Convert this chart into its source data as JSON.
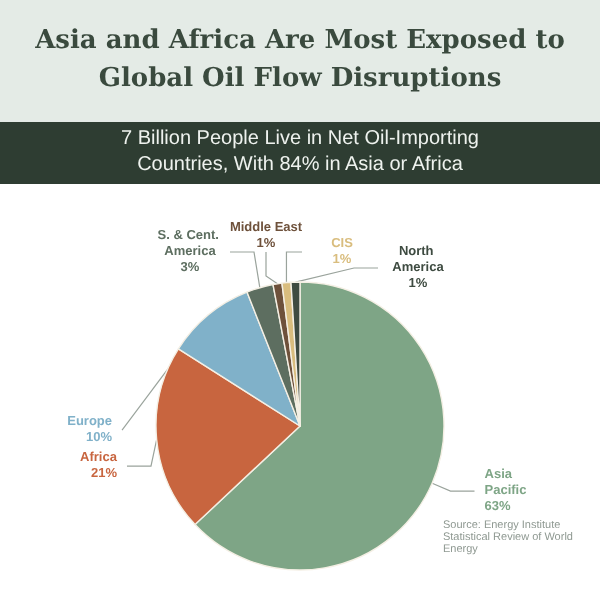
{
  "chart_data": {
    "type": "pie",
    "title": "Asia and Africa Are Most Exposed to Global Oil Flow Disruptions",
    "subtitle": "7 Billion People Live in Net Oil-Importing Countries, With 84% in Asia or Africa",
    "categories": [
      "Asia Pacific",
      "Africa",
      "Europe",
      "S. & Cent. America",
      "Middle East",
      "CIS",
      "North America"
    ],
    "values": [
      63,
      21,
      10,
      3,
      1,
      1,
      1
    ],
    "value_labels": [
      "63%",
      "21%",
      "10%",
      "3%",
      "1%",
      "1%",
      "1%"
    ],
    "colors": [
      "#7ea586",
      "#c8653f",
      "#80b1c9",
      "#5d6e60",
      "#6e513b",
      "#d9bd7e",
      "#3e4b41"
    ],
    "annotations": [
      "Source: Energy Institute Statistical Review of World Energy"
    ]
  }
}
